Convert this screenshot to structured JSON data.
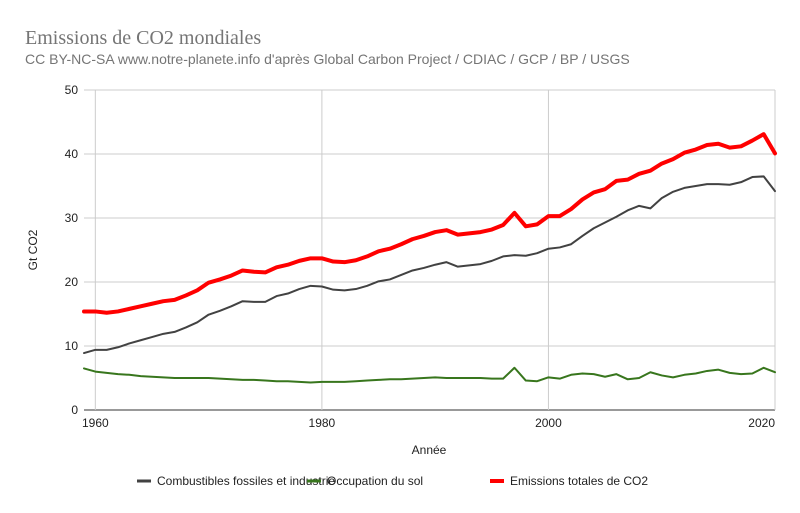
{
  "chart_data": {
    "type": "line",
    "title": "Emissions de CO2 mondiales",
    "subtitle": "CC BY-NC-SA www.notre-planete.info d'après Global Carbon Project / CDIAC / GCP / BP / USGS",
    "xlabel": "Année",
    "ylabel": "Gt CO2",
    "xlim": [
      1959,
      2020
    ],
    "ylim": [
      0,
      50
    ],
    "x_ticks": [
      "1960",
      "1980",
      "2000",
      "2020"
    ],
    "y_ticks": [
      "0",
      "10",
      "20",
      "30",
      "40",
      "50"
    ],
    "grid": true,
    "legend_position": "bottom",
    "x": [
      1959,
      1960,
      1961,
      1962,
      1963,
      1964,
      1965,
      1966,
      1967,
      1968,
      1969,
      1970,
      1971,
      1972,
      1973,
      1974,
      1975,
      1976,
      1977,
      1978,
      1979,
      1980,
      1981,
      1982,
      1983,
      1984,
      1985,
      1986,
      1987,
      1988,
      1989,
      1990,
      1991,
      1992,
      1993,
      1994,
      1995,
      1996,
      1997,
      1998,
      1999,
      2000,
      2001,
      2002,
      2003,
      2004,
      2005,
      2006,
      2007,
      2008,
      2009,
      2010,
      2011,
      2012,
      2013,
      2014,
      2015,
      2016,
      2017,
      2018,
      2019,
      2020
    ],
    "series": [
      {
        "name": "Combustibles fossiles et industrie",
        "color": "#424242",
        "values": [
          8.9,
          9.4,
          9.4,
          9.8,
          10.4,
          10.9,
          11.4,
          11.9,
          12.2,
          12.9,
          13.7,
          14.9,
          15.5,
          16.2,
          17.0,
          16.9,
          16.9,
          17.8,
          18.2,
          18.9,
          19.4,
          19.3,
          18.8,
          18.7,
          18.9,
          19.4,
          20.1,
          20.4,
          21.1,
          21.8,
          22.2,
          22.7,
          23.1,
          22.4,
          22.6,
          22.8,
          23.3,
          24.0,
          24.2,
          24.1,
          24.5,
          25.2,
          25.4,
          25.9,
          27.2,
          28.4,
          29.3,
          30.2,
          31.2,
          31.9,
          31.5,
          33.1,
          34.1,
          34.7,
          35.0,
          35.3,
          35.3,
          35.2,
          35.6,
          36.4,
          36.5,
          34.2
        ]
      },
      {
        "name": "Occupation du sol",
        "color": "#38761d",
        "values": [
          6.5,
          6.0,
          5.8,
          5.6,
          5.5,
          5.3,
          5.2,
          5.1,
          5.0,
          5.0,
          5.0,
          5.0,
          4.9,
          4.8,
          4.7,
          4.7,
          4.6,
          4.5,
          4.5,
          4.4,
          4.3,
          4.4,
          4.4,
          4.4,
          4.5,
          4.6,
          4.7,
          4.8,
          4.8,
          4.9,
          5.0,
          5.1,
          5.0,
          5.0,
          5.0,
          5.0,
          4.9,
          4.9,
          6.6,
          4.6,
          4.5,
          5.1,
          4.9,
          5.5,
          5.7,
          5.6,
          5.2,
          5.6,
          4.8,
          5.0,
          5.9,
          5.4,
          5.1,
          5.5,
          5.7,
          6.1,
          6.3,
          5.8,
          5.6,
          5.7,
          6.6,
          5.9
        ]
      },
      {
        "name": "Emissions totales de CO2",
        "color": "#ff0000",
        "values": [
          15.4,
          15.4,
          15.2,
          15.4,
          15.8,
          16.2,
          16.6,
          17.0,
          17.2,
          17.9,
          18.7,
          19.9,
          20.4,
          21.0,
          21.8,
          21.6,
          21.5,
          22.3,
          22.7,
          23.3,
          23.7,
          23.7,
          23.2,
          23.1,
          23.4,
          24.0,
          24.8,
          25.2,
          25.9,
          26.7,
          27.2,
          27.8,
          28.1,
          27.4,
          27.6,
          27.8,
          28.2,
          28.9,
          30.8,
          28.7,
          29.0,
          30.3,
          30.3,
          31.4,
          32.9,
          34.0,
          34.5,
          35.8,
          36.0,
          36.9,
          37.4,
          38.5,
          39.2,
          40.2,
          40.7,
          41.4,
          41.6,
          41.0,
          41.2,
          42.1,
          43.1,
          40.1
        ]
      }
    ]
  }
}
